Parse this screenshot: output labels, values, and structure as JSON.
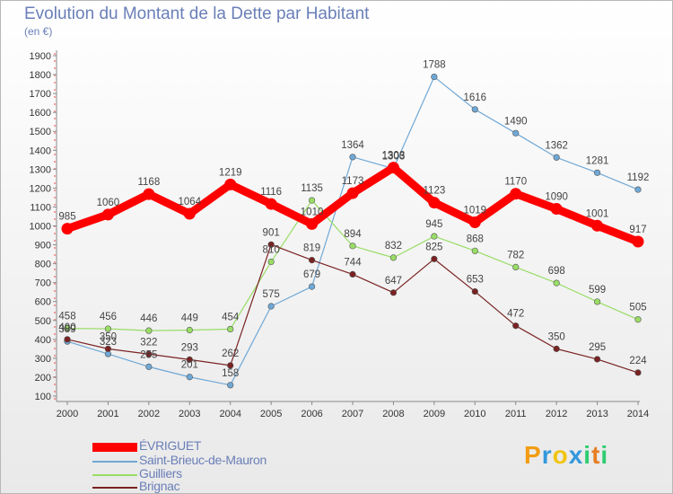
{
  "title": "Evolution du Montant de la Dette par Habitant",
  "subtitle": "(en €)",
  "logo": {
    "letters": [
      "P",
      "r",
      "o",
      "x",
      "i",
      "t",
      "i"
    ],
    "colors": [
      "#f39c12",
      "#3498db",
      "#f1c40f",
      "#3498db",
      "#2ecc71",
      "#e67e22",
      "#2ecc71"
    ]
  },
  "chart_data": {
    "type": "line",
    "title": "Evolution du Montant de la Dette par Habitant",
    "ylabel": "(en €)",
    "xlabel": "",
    "x": [
      "2000",
      "2001",
      "2002",
      "2003",
      "2004",
      "2005",
      "2006",
      "2007",
      "2008",
      "2009",
      "2010",
      "2011",
      "2012",
      "2013",
      "2014"
    ],
    "ylim": [
      100,
      1900
    ],
    "yticks": [
      "100",
      "200",
      "300",
      "400",
      "500",
      "600",
      "700",
      "800",
      "900",
      "1000",
      "1100",
      "1200",
      "1300",
      "1400",
      "1500",
      "1600",
      "1700",
      "1800",
      "1900"
    ],
    "grid": false,
    "legend": "bottom-left",
    "series": [
      {
        "name": "ÉVRIGUET",
        "color": "#ff0000",
        "values": [
          985,
          1060,
          1168,
          1064,
          1219,
          1116,
          1010,
          1173,
          1308,
          1123,
          1019,
          1170,
          1090,
          1001,
          917
        ],
        "labels": [
          "985",
          "1060",
          "1168",
          "1064",
          "1219",
          "1116",
          "1010",
          "1173",
          "1308",
          "1123",
          "1019",
          "1170",
          "1090",
          "1001",
          "917"
        ]
      },
      {
        "name": "Saint-Brieuc-de-Mauron",
        "color": "#6fa8d6",
        "values": [
          389,
          323,
          255,
          201,
          158,
          575,
          679,
          1364,
          1303,
          1788,
          1616,
          1490,
          1362,
          1281,
          1192
        ],
        "labels": [
          "389",
          "323",
          "255",
          "201",
          "158",
          "575",
          "679",
          "1364",
          "1303",
          "1788",
          "1616",
          "1490",
          "1362",
          "1281",
          "1192"
        ]
      },
      {
        "name": "Guilliers",
        "color": "#99dd66",
        "values": [
          458,
          456,
          446,
          449,
          454,
          810,
          1135,
          894,
          832,
          945,
          868,
          782,
          698,
          599,
          505
        ],
        "labels": [
          "458",
          "456",
          "446",
          "449",
          "454",
          "810",
          "1135",
          "894",
          "832",
          "945",
          "868",
          "782",
          "698",
          "599",
          "505"
        ]
      },
      {
        "name": "Brignac",
        "color": "#7a2222",
        "values": [
          400,
          350,
          322,
          293,
          262,
          901,
          819,
          744,
          647,
          825,
          653,
          472,
          350,
          295,
          224
        ],
        "labels": [
          "400",
          "350",
          "322",
          "293",
          "262",
          "901",
          "819",
          "744",
          "647",
          "825",
          "653",
          "472",
          "350",
          "295",
          "224"
        ]
      }
    ]
  }
}
